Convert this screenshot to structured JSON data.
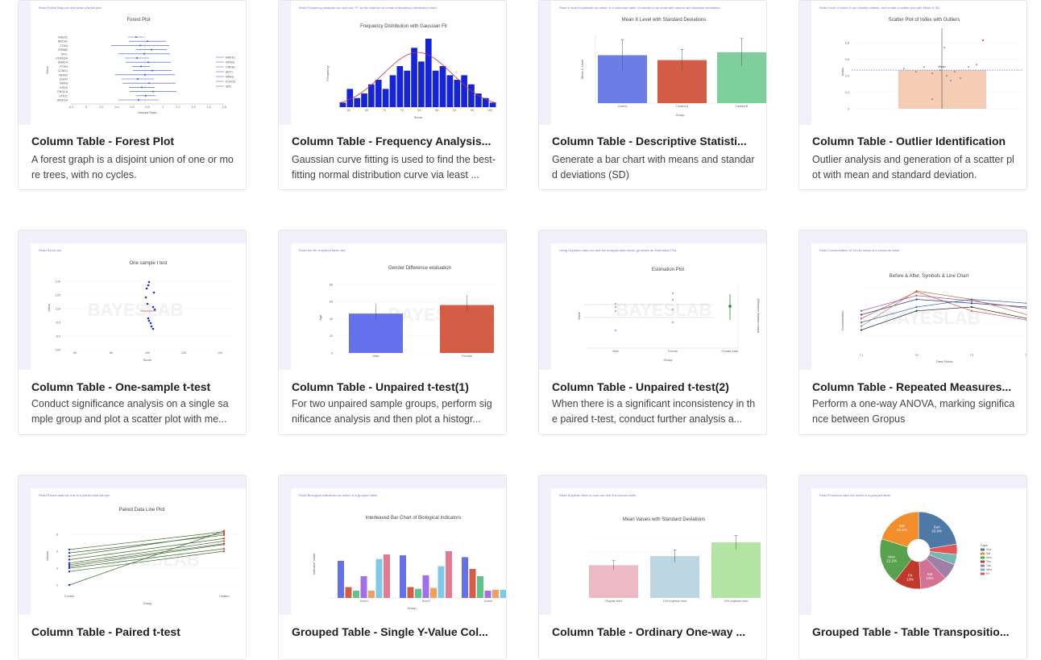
{
  "cards": [
    {
      "title": "Column Table - Forest Plot",
      "desc": "A forest graph is a disjoint union of one or more trees, with no cycles.",
      "chart_title": "Forest Plot",
      "note": "Read  Forest Map.csv  and draw a forest plot."
    },
    {
      "title": "Column Table - Frequency Analysis...",
      "desc": "Gaussian curve fitting is used to find the best-fitting normal distribution curve via least ...",
      "chart_title": "Frequency Distribution with Gaussian Fit",
      "note": "Read  Frequency analysis.csv  and use \"S\" as the data bin to create a frequency distribution chart."
    },
    {
      "title": "Column Table - Descriptive Statisti...",
      "desc": "Generate a bar chart with means and standard deviations (SD)",
      "chart_title": "Mean X Level with Standard Deviations",
      "note": "Read  X level in patients.csv  which is a columnar table. Generate a bar chart with means and standard deviations."
    },
    {
      "title": "Column Table - Outlier Identification",
      "desc": "Outlier analysis and generation of a scatter plot with mean and standard deviation.",
      "chart_title": "Scatter Plot of Index with Outliers",
      "note": "Read  Level of Index X.csv  identify outliers, and create a scatter plot with Mean & SD."
    },
    {
      "title": "Column Table - One-sample t-test",
      "desc": "Conduct significance analysis on a single sample group and plot a scatter plot with me...",
      "chart_title": "One sample t test",
      "note": "Read  Score.csv"
    },
    {
      "title": "Column Table - Unpaired t-test(1)",
      "desc": "For two unpaired sample groups, perform significance analysis and then plot a histogr...",
      "chart_title": "Gender Difference evaluation",
      "note": "Read the file  Unpaired table.xlsx"
    },
    {
      "title": "Column Table - Unpaired t-test(2)",
      "desc": "When there is a significant inconsistency in the paired t-test, conduct further analysis a...",
      "chart_title": "Estimation Plot",
      "note": "Using  Unpaired data.csv  and the analysis data below, generate an Estimation Plot."
    },
    {
      "title": "Column Table - Repeated Measures...",
      "desc": "Perform a one-way ANOVA, marking significance between Gropus",
      "chart_title": "Before & After, Symbols & Line Chart",
      "note": "Read  Concentration of Xs.csv  which is a columnar table."
    },
    {
      "title": "Column Table - Paired t-test",
      "desc": "",
      "chart_title": "Paired Data Line Plot",
      "note": "Read  Paired data.csv  this is a paired data sample."
    },
    {
      "title": "Grouped Table - Single Y-Value Col...",
      "desc": "",
      "chart_title": "Interleaved Bar Chart of Biological Indicators",
      "note": "Read  Biological indicators.csv  which is a grouped table."
    },
    {
      "title": "Column Table - Ordinary One-way ...",
      "desc": "",
      "chart_title": "Mean Values with Standard Deviations",
      "note": "Read  Soybean feed vs corn.csv  this is a column table."
    },
    {
      "title": "Grouped Table - Table Transpositio...",
      "desc": "",
      "chart_title": "",
      "note": "Read  Proceeds data.csv  which is a grouped table."
    }
  ],
  "charts": {
    "forest": {
      "labels": [
        "RAD51",
        "BRCA1",
        "CDK4",
        "ERBB2",
        "MYC",
        "CDKN2A",
        "SMAD4",
        "PTEN",
        "CCND1",
        "MDM2",
        "EGFR",
        "NRAS",
        "KRAS",
        "PIK3CA",
        "STK11",
        "ARID1A"
      ],
      "right_labels": [
        "MAPK1",
        "NFKB1",
        "CREB1",
        "AKT1",
        "NRAS",
        "FOXO3",
        "SRC"
      ],
      "xticks": [
        "-0.2",
        "0",
        "0.2",
        "0.4",
        "0.6",
        "0.8",
        "1",
        "1.2",
        "1.4",
        "1.6",
        "1.8"
      ],
      "ylabel": "Gene",
      "xlabel": "Hazard Ratio"
    },
    "freq": {
      "values": [
        1,
        4,
        2,
        3,
        5,
        6,
        4,
        7,
        9,
        8,
        13,
        10,
        15,
        8,
        9,
        7,
        6,
        7,
        5,
        3,
        2,
        1
      ],
      "xticks": [
        "60",
        "65",
        "70",
        "75",
        "80",
        "85",
        "90",
        "95",
        "100"
      ],
      "ylabel": "Frequency",
      "xlabel": "Score"
    },
    "desc": {
      "categories": [
        "Control",
        "Treated A",
        "Treated B"
      ],
      "values": [
        4.9,
        4.4,
        5.2
      ],
      "errors": [
        1.6,
        1.1,
        1.4
      ],
      "colors": [
        "#6c7de8",
        "#d25c45",
        "#7fcf9c"
      ],
      "ylabel": "Mean X Level",
      "xlabel": "Group",
      "ylim": [
        0,
        7
      ]
    },
    "outlier": {
      "ylabel": "Index",
      "yticks": [
        "0",
        "0.2",
        "0.4",
        "0.6",
        "0.8"
      ],
      "mean_label": "Mean"
    },
    "onesample": {
      "ylabel": "Value",
      "xlabel": "Score",
      "yticks": [
        "130",
        "125",
        "120",
        "115",
        "110",
        "105"
      ],
      "xticks": [
        "60",
        "80",
        "100",
        "120",
        "140"
      ]
    },
    "gender": {
      "categories": [
        "Male",
        "Female"
      ],
      "values": [
        46,
        56
      ],
      "colors": [
        "#6470ec",
        "#d65d45"
      ],
      "ylabel": "Age",
      "yticks": [
        "80",
        "60",
        "40",
        "20",
        "0"
      ],
      "ylim": [
        0,
        80
      ]
    },
    "estim": {
      "categories": [
        "Male",
        "Female",
        "Female-Male"
      ],
      "ylabel": "Value",
      "xlabel": "Group",
      "right_label": "Difference between means"
    },
    "repeated": {
      "xticks": [
        "T1",
        "T2",
        "T3",
        "T4"
      ],
      "ylabel": "Concentration",
      "xlabel": "Time Points",
      "series": [
        {
          "values": [
            4.5,
            8,
            5.5,
            4.3
          ],
          "color": "#d9534f"
        },
        {
          "values": [
            5,
            7,
            6.5,
            6
          ],
          "color": "#1f3a93"
        },
        {
          "values": [
            3.5,
            8.1,
            7,
            5
          ],
          "color": "#c0763b"
        },
        {
          "values": [
            4,
            6,
            7,
            6.5
          ],
          "color": "#3b6fb6"
        },
        {
          "values": [
            3,
            5.5,
            6,
            4.5
          ],
          "color": "#333"
        },
        {
          "values": [
            5.5,
            7.5,
            6.8,
            5.8
          ],
          "color": "#a05b8c"
        }
      ]
    },
    "paired": {
      "categories": [
        "Control",
        "Treated"
      ],
      "ylabel": "Values",
      "xlabel": "Group",
      "yticks": [
        "8",
        "6",
        "4",
        "2"
      ],
      "pairs": [
        [
          6.2,
          8.3
        ],
        [
          5.8,
          7.9
        ],
        [
          5.4,
          8.1
        ],
        [
          5.0,
          7.5
        ],
        [
          4.6,
          7.2
        ],
        [
          4.4,
          6.9
        ],
        [
          4.2,
          6.8
        ],
        [
          4.0,
          6.3
        ],
        [
          3.6,
          6.0
        ],
        [
          2.0,
          8.4
        ]
      ]
    },
    "interleaved": {
      "categories": [
        "Dose1",
        "Dose2",
        "Dose3"
      ],
      "ylabel": "Indicator Value",
      "xlabel": "Group",
      "series": [
        {
          "values": [
            205,
            235,
            225
          ],
          "color": "#6470ec"
        },
        {
          "values": [
            60,
            60,
            160
          ],
          "color": "#d65d45"
        },
        {
          "values": [
            40,
            50,
            120
          ],
          "color": "#62c28c"
        },
        {
          "values": [
            120,
            125,
            40
          ],
          "color": "#a36ee8"
        },
        {
          "values": [
            40,
            55,
            45
          ],
          "color": "#f0a05b"
        },
        {
          "values": [
            215,
            175,
            45
          ],
          "color": "#7ec8e8"
        },
        {
          "values": [
            240,
            258,
            380
          ],
          "color": "#e37a91"
        }
      ]
    },
    "oneway": {
      "categories": [
        "Regular feed",
        "10% soybean feed",
        "20% soybean feed"
      ],
      "values": [
        4.3,
        5.5,
        7.3
      ],
      "errors": [
        0.6,
        0.8,
        0.9
      ],
      "colors": [
        "#ebbac4",
        "#bcd6e2",
        "#b3e4a3"
      ]
    },
    "pie": {
      "slices": [
        {
          "label": "Sun",
          "pct": "25.6%",
          "value": 25.6,
          "color": "#4e79a7"
        },
        {
          "label": "Tue",
          "pct": "",
          "value": 5,
          "color": "#e15759"
        },
        {
          "label": "Wed",
          "pct": "",
          "value": 5,
          "color": "#76b7b2"
        },
        {
          "label": "Thu",
          "pct": "",
          "value": 7.7,
          "color": "#a07ea6"
        },
        {
          "label": "Sat",
          "pct": "13%",
          "value": 13,
          "color": "#d37295"
        },
        {
          "label": "Fri",
          "pct": "13%",
          "value": 13,
          "color": "#c0392b"
        },
        {
          "label": "Mon",
          "pct": "22.2%",
          "value": 22.2,
          "color": "#59a14f"
        },
        {
          "label": "Sat",
          "pct": "23.1%",
          "value": 23.1,
          "color": "#f28e2b"
        }
      ],
      "legend_title": "Days",
      "legend": [
        "Sun",
        "Sat",
        "Mon",
        "Thu",
        "Tue",
        "Wed",
        "Fri"
      ],
      "legend_colors": [
        "#4e79a7",
        "#f28e2b",
        "#59a14f",
        "#c0392b",
        "#a07ea6",
        "#76b7b2",
        "#e15759"
      ]
    }
  }
}
